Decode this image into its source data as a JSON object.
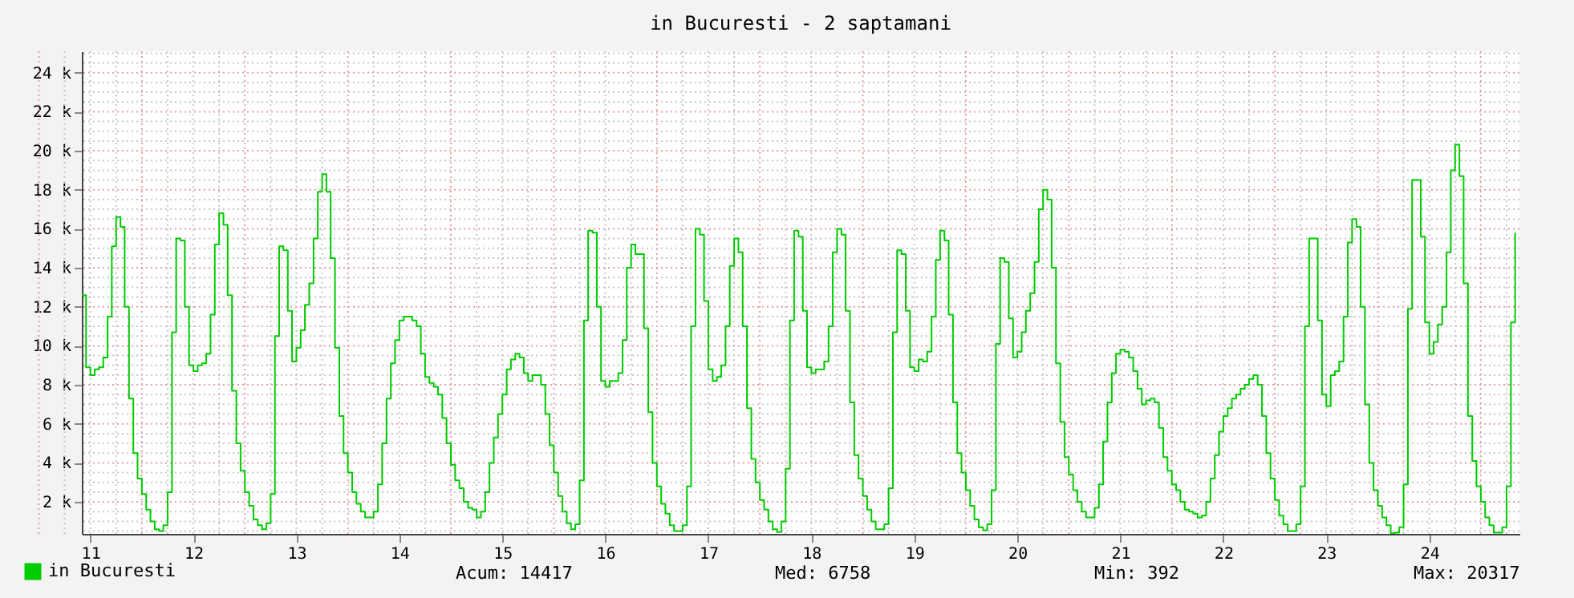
{
  "chart_data": {
    "type": "step",
    "title": "in Bucuresti - 2 saptamani",
    "x": [
      10.917,
      10.958,
      11.0,
      11.042,
      11.083,
      11.125,
      11.167,
      11.208,
      11.25,
      11.292,
      11.333,
      11.375,
      11.417,
      11.458,
      11.5,
      11.542,
      11.583,
      11.625,
      11.667,
      11.708,
      11.75,
      11.792,
      11.833,
      11.875,
      11.917,
      11.958,
      12.0,
      12.042,
      12.083,
      12.125,
      12.167,
      12.208,
      12.25,
      12.292,
      12.333,
      12.375,
      12.417,
      12.458,
      12.5,
      12.542,
      12.583,
      12.625,
      12.667,
      12.708,
      12.75,
      12.792,
      12.833,
      12.875,
      12.917,
      12.958,
      13.0,
      13.042,
      13.083,
      13.125,
      13.167,
      13.208,
      13.25,
      13.292,
      13.333,
      13.375,
      13.417,
      13.458,
      13.5,
      13.542,
      13.583,
      13.625,
      13.667,
      13.708,
      13.75,
      13.792,
      13.833,
      13.875,
      13.917,
      13.958,
      14.0,
      14.042,
      14.083,
      14.125,
      14.167,
      14.208,
      14.25,
      14.292,
      14.333,
      14.375,
      14.417,
      14.458,
      14.5,
      14.542,
      14.583,
      14.625,
      14.667,
      14.708,
      14.75,
      14.792,
      14.833,
      14.875,
      14.917,
      14.958,
      15.0,
      15.042,
      15.083,
      15.125,
      15.167,
      15.208,
      15.25,
      15.292,
      15.333,
      15.375,
      15.417,
      15.458,
      15.5,
      15.542,
      15.583,
      15.625,
      15.667,
      15.708,
      15.75,
      15.792,
      15.833,
      15.875,
      15.917,
      15.958,
      16.0,
      16.042,
      16.083,
      16.125,
      16.167,
      16.208,
      16.25,
      16.292,
      16.333,
      16.375,
      16.417,
      16.458,
      16.5,
      16.542,
      16.583,
      16.625,
      16.667,
      16.708,
      16.75,
      16.792,
      16.833,
      16.875,
      16.917,
      16.958,
      17.0,
      17.042,
      17.083,
      17.125,
      17.167,
      17.208,
      17.25,
      17.292,
      17.333,
      17.375,
      17.417,
      17.458,
      17.5,
      17.542,
      17.583,
      17.625,
      17.667,
      17.708,
      17.75,
      17.792,
      17.833,
      17.875,
      17.917,
      17.958,
      18.0,
      18.042,
      18.083,
      18.125,
      18.167,
      18.208,
      18.25,
      18.292,
      18.333,
      18.375,
      18.417,
      18.458,
      18.5,
      18.542,
      18.583,
      18.625,
      18.667,
      18.708,
      18.75,
      18.792,
      18.833,
      18.875,
      18.917,
      18.958,
      19.0,
      19.042,
      19.083,
      19.125,
      19.167,
      19.208,
      19.25,
      19.292,
      19.333,
      19.375,
      19.417,
      19.458,
      19.5,
      19.542,
      19.583,
      19.625,
      19.667,
      19.708,
      19.75,
      19.792,
      19.833,
      19.875,
      19.917,
      19.958,
      20.0,
      20.042,
      20.083,
      20.125,
      20.167,
      20.208,
      20.25,
      20.292,
      20.333,
      20.375,
      20.417,
      20.458,
      20.5,
      20.542,
      20.583,
      20.625,
      20.667,
      20.708,
      20.75,
      20.792,
      20.833,
      20.875,
      20.917,
      20.958,
      21.0,
      21.042,
      21.083,
      21.125,
      21.167,
      21.208,
      21.25,
      21.292,
      21.333,
      21.375,
      21.417,
      21.458,
      21.5,
      21.542,
      21.583,
      21.625,
      21.667,
      21.708,
      21.75,
      21.792,
      21.833,
      21.875,
      21.917,
      21.958,
      22.0,
      22.042,
      22.083,
      22.125,
      22.167,
      22.208,
      22.25,
      22.292,
      22.333,
      22.375,
      22.417,
      22.458,
      22.5,
      22.542,
      22.583,
      22.625,
      22.667,
      22.708,
      22.75,
      22.792,
      22.833,
      22.875,
      22.917,
      22.958,
      23.0,
      23.042,
      23.083,
      23.125,
      23.167,
      23.208,
      23.25,
      23.292,
      23.333,
      23.375,
      23.417,
      23.458,
      23.5,
      23.542,
      23.583,
      23.625,
      23.667,
      23.708,
      23.75,
      23.792,
      23.833,
      23.875,
      23.917,
      23.958,
      24.0,
      24.042,
      24.083,
      24.125,
      24.167,
      24.208,
      24.25,
      24.292,
      24.333,
      24.375,
      24.417,
      24.458,
      24.5,
      24.542,
      24.583,
      24.625,
      24.667,
      24.708,
      24.75,
      24.792,
      24.833
    ],
    "series": [
      {
        "name": "in Bucuresti",
        "color": "#00cc00",
        "values": [
          12600,
          8900,
          8500,
          8800,
          8900,
          9400,
          11500,
          15100,
          16600,
          16100,
          12000,
          7300,
          4500,
          3200,
          2400,
          1600,
          1000,
          600,
          500,
          800,
          2500,
          10700,
          15500,
          15400,
          12000,
          9000,
          8700,
          9000,
          9100,
          9600,
          11600,
          15200,
          16800,
          16200,
          12600,
          7700,
          5000,
          3600,
          2500,
          1800,
          1100,
          800,
          600,
          900,
          2400,
          10500,
          15100,
          14900,
          11800,
          9200,
          9900,
          10800,
          12100,
          13200,
          15500,
          17900,
          18800,
          17900,
          14500,
          9900,
          6400,
          4500,
          3500,
          2500,
          1900,
          1500,
          1200,
          1200,
          1500,
          2900,
          5000,
          7300,
          9100,
          10300,
          11300,
          11500,
          11500,
          11300,
          11000,
          9600,
          8400,
          8100,
          7900,
          7500,
          6300,
          5000,
          3900,
          3100,
          2700,
          2000,
          1700,
          1600,
          1200,
          1500,
          2500,
          4000,
          5300,
          6500,
          7500,
          8800,
          9300,
          9600,
          9400,
          8600,
          8200,
          8500,
          8500,
          8000,
          6500,
          4900,
          3500,
          2300,
          1500,
          900,
          600,
          850,
          3100,
          11300,
          15900,
          15800,
          12000,
          8200,
          7900,
          8200,
          8200,
          8600,
          10300,
          14000,
          15200,
          14700,
          14700,
          10900,
          6600,
          4000,
          2800,
          1900,
          1400,
          800,
          500,
          500,
          800,
          2800,
          11000,
          16000,
          15700,
          12300,
          8800,
          8200,
          8400,
          9000,
          11000,
          14100,
          15500,
          14800,
          11000,
          6800,
          4200,
          3000,
          2100,
          1600,
          1000,
          600,
          450,
          1000,
          3700,
          11300,
          15900,
          15600,
          11800,
          8900,
          8600,
          8800,
          8800,
          9200,
          11000,
          14800,
          16000,
          15700,
          11800,
          7100,
          4400,
          3200,
          2300,
          1600,
          1000,
          600,
          600,
          850,
          2700,
          10700,
          14900,
          14700,
          11800,
          8900,
          8700,
          9300,
          9200,
          9700,
          11500,
          14400,
          15900,
          15400,
          11600,
          7100,
          4500,
          3500,
          2600,
          1800,
          1100,
          700,
          550,
          850,
          2600,
          10100,
          14500,
          14300,
          11400,
          9400,
          9700,
          10700,
          11800,
          12700,
          14300,
          17000,
          18000,
          17500,
          14000,
          9100,
          6100,
          4300,
          3400,
          2600,
          2000,
          1500,
          1200,
          1200,
          1700,
          2900,
          5100,
          7100,
          8600,
          9600,
          9800,
          9700,
          9400,
          8700,
          7800,
          7000,
          7200,
          7300,
          7100,
          5800,
          4300,
          3600,
          2900,
          2600,
          2000,
          1600,
          1500,
          1400,
          1200,
          1300,
          2000,
          3200,
          4400,
          5600,
          6400,
          6800,
          7300,
          7500,
          7800,
          8000,
          8300,
          8500,
          8000,
          6400,
          4500,
          3200,
          2100,
          1300,
          850,
          500,
          500,
          850,
          2800,
          11000,
          15500,
          15500,
          11300,
          7500,
          6900,
          8500,
          8700,
          9200,
          11500,
          15300,
          16500,
          16100,
          12000,
          7000,
          4000,
          2600,
          1800,
          1200,
          800,
          392,
          420,
          700,
          2900,
          11900,
          18500,
          18500,
          15600,
          11200,
          9600,
          10200,
          11100,
          12000,
          14800,
          19000,
          20317,
          18700,
          13200,
          6400,
          4100,
          2800,
          2000,
          1200,
          800,
          420,
          420,
          700,
          2800,
          11200,
          15800
        ]
      }
    ],
    "xlim": [
      10.917,
      24.875
    ],
    "xticks": [
      11,
      12,
      13,
      14,
      15,
      16,
      17,
      18,
      19,
      20,
      21,
      22,
      23,
      24
    ],
    "ylim": [
      360,
      25100
    ],
    "yticks": [
      {
        "value": 2000,
        "label": "2 k"
      },
      {
        "value": 4000,
        "label": "4 k"
      },
      {
        "value": 6000,
        "label": "6 k"
      },
      {
        "value": 8000,
        "label": "8 k"
      },
      {
        "value": 10000,
        "label": "10 k"
      },
      {
        "value": 12000,
        "label": "12 k"
      },
      {
        "value": 14000,
        "label": "14 k"
      },
      {
        "value": 16000,
        "label": "16 k"
      },
      {
        "value": 18000,
        "label": "18 k"
      },
      {
        "value": 20000,
        "label": "20 k"
      },
      {
        "value": 22000,
        "label": "22 k"
      },
      {
        "value": 24000,
        "label": "24 k"
      }
    ],
    "grid": true,
    "legend": "bottom left",
    "annotations": [
      "Acum:  14417",
      "Med:   6758",
      "Min:    392",
      "Max:  20317"
    ]
  }
}
